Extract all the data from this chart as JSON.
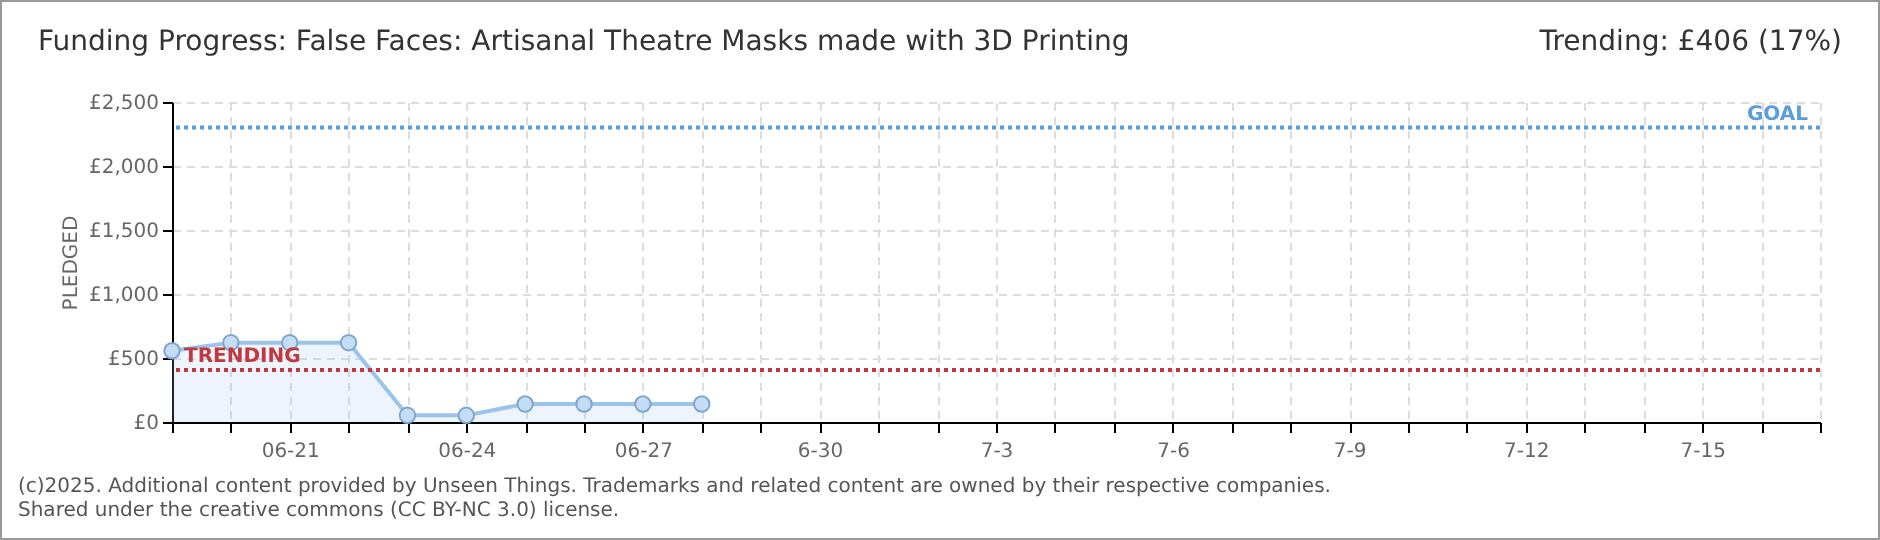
{
  "chart_data": {
    "type": "area",
    "title": "Funding Progress: False Faces: Artisanal Theatre Masks made with 3D Printing",
    "subtitle": "Trending:  £406 (17%)",
    "ylabel": "PLEDGED",
    "x": [
      "--06-19",
      "--06-20",
      "--06-21",
      "--06-22",
      "--06-23",
      "--06-24",
      "--06-25",
      "--06-26",
      "--06-27",
      "--06-28"
    ],
    "series": [
      {
        "color": "#9cc3ea",
        "values": [
          557,
          620,
          620,
          620,
          52,
          52,
          141,
          141,
          141,
          141
        ]
      }
    ],
    "xlim": [
      "--06-19",
      "--07-17"
    ],
    "xticks": [
      {
        "value": "--06-19",
        "label": null
      },
      {
        "value": "--06-20",
        "label": null
      },
      {
        "value": "--06-21",
        "label": "06-21"
      },
      {
        "value": "--06-22",
        "label": null
      },
      {
        "value": "--06-23",
        "label": null
      },
      {
        "value": "--06-24",
        "label": "06-24"
      },
      {
        "value": "--06-25",
        "label": null
      },
      {
        "value": "--06-26",
        "label": null
      },
      {
        "value": "--06-27",
        "label": "06-27"
      },
      {
        "value": "--06-28",
        "label": null
      },
      {
        "value": "--06-29",
        "label": null
      },
      {
        "value": "--06-30",
        "label": "6-30"
      },
      {
        "value": "--07-01",
        "label": null
      },
      {
        "value": "--07-02",
        "label": null
      },
      {
        "value": "--07-03",
        "label": "7-3"
      },
      {
        "value": "--07-04",
        "label": null
      },
      {
        "value": "--07-05",
        "label": null
      },
      {
        "value": "--07-06",
        "label": "7-6"
      },
      {
        "value": "--07-07",
        "label": null
      },
      {
        "value": "--07-08",
        "label": null
      },
      {
        "value": "--07-09",
        "label": "7-9"
      },
      {
        "value": "--07-10",
        "label": null
      },
      {
        "value": "--07-11",
        "label": null
      },
      {
        "value": "--07-12",
        "label": "7-12"
      },
      {
        "value": "--07-13",
        "label": null
      },
      {
        "value": "--07-14",
        "label": null
      },
      {
        "value": "--07-15",
        "label": "7-15"
      },
      {
        "value": "--07-16",
        "label": null
      },
      {
        "value": "--07-17",
        "label": null
      }
    ],
    "ylim": [
      0,
      2500
    ],
    "yticks": [
      {
        "value": 0,
        "label": "£0"
      },
      {
        "value": 500,
        "label": "£500"
      },
      {
        "value": 1000,
        "label": "£1,000"
      },
      {
        "value": 1500,
        "label": "£1,500"
      },
      {
        "value": 2000,
        "label": "£2,000"
      },
      {
        "value": 2500,
        "label": "£2,500"
      }
    ],
    "ref_lines": [
      {
        "axis": "y",
        "value": 2300,
        "label": "GOAL",
        "color": "#5b9be0",
        "line_style": "dotted"
      },
      {
        "axis": "y",
        "value": 406,
        "label": "TRENDING",
        "color": "#c0393f",
        "line_style": "dotted"
      }
    ],
    "grid": true,
    "marker": "circle",
    "line_style": "solid",
    "annotations": [
      "(c)2025. Additional content provided by Unseen Things. Trademarks and related content are owned by their respective companies.",
      "Shared under the creative commons (CC BY-NC 3.0) license."
    ]
  }
}
